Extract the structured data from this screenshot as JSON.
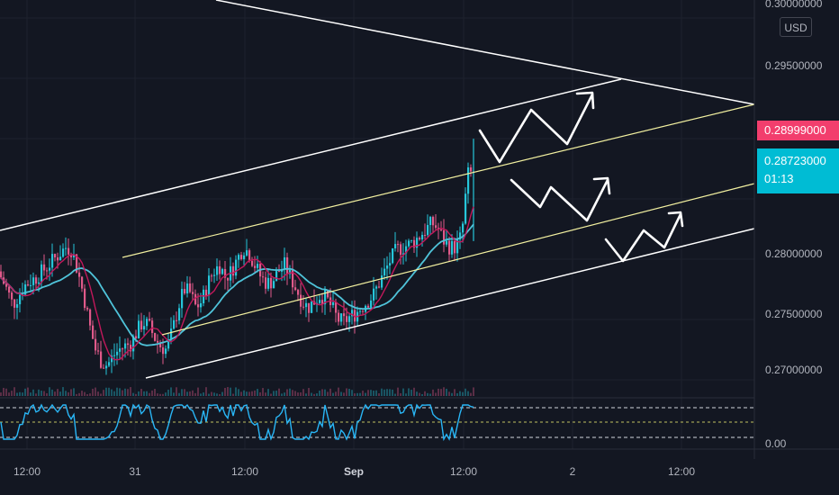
{
  "price_axis": {
    "currency": "USD",
    "top_label": "0.30000000",
    "labels": [
      "0.29500000",
      "0.28000000",
      "0.27500000",
      "0.27000000"
    ]
  },
  "oscillator": {
    "label": "0.00"
  },
  "tags": {
    "high_price": "0.28999000",
    "last_price": "0.28723000",
    "countdown": "01:13"
  },
  "time_axis": [
    "12:00",
    "31",
    "12:00",
    "Sep",
    "12:00",
    "2",
    "12:00"
  ],
  "colors": {
    "background": "#131722",
    "up": "#26c6da",
    "down": "#e05a8a",
    "ma_fast": "#e05a8a",
    "ma_slow": "#4fc3d9",
    "channel": "#ffffff",
    "mid_lines": "#f2f0a0",
    "high_tag": "#f23e6d",
    "last_tag": "#00bcd4"
  },
  "chart_data": {
    "type": "candlestick",
    "y_axis_ticks": [
      0.27,
      0.275,
      0.28,
      0.285,
      0.29,
      0.295,
      0.3
    ],
    "x_axis_ticks": [
      "12:00",
      "31",
      "12:00",
      "Sep",
      "12:00",
      "2",
      "12:00"
    ],
    "last_price": 0.28723,
    "high_price": 0.28999,
    "series_path": [
      0.2785,
      0.2775,
      0.2762,
      0.277,
      0.2778,
      0.2782,
      0.2785,
      0.279,
      0.2795,
      0.28,
      0.2805,
      0.281,
      0.2808,
      0.279,
      0.277,
      0.2745,
      0.2725,
      0.2715,
      0.2712,
      0.272,
      0.2725,
      0.2728,
      0.273,
      0.274,
      0.2748,
      0.2745,
      0.2735,
      0.2728,
      0.2725,
      0.274,
      0.276,
      0.2775,
      0.2772,
      0.276,
      0.2765,
      0.278,
      0.279,
      0.2795,
      0.2785,
      0.279,
      0.28,
      0.281,
      0.2805,
      0.2795,
      0.2785,
      0.278,
      0.2782,
      0.279,
      0.2795,
      0.2785,
      0.2775,
      0.2765,
      0.276,
      0.2765,
      0.277,
      0.2768,
      0.276,
      0.275,
      0.2748,
      0.2752,
      0.2755,
      0.276,
      0.2765,
      0.277,
      0.278,
      0.279,
      0.28,
      0.2808,
      0.281,
      0.2812,
      0.2815,
      0.282,
      0.2825,
      0.283,
      0.2825,
      0.2815,
      0.281,
      0.281,
      0.282,
      0.287,
      0.2872
    ]
  }
}
